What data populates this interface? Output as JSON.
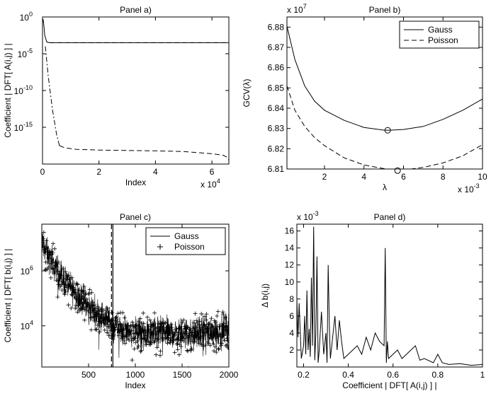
{
  "chart_data": [
    {
      "id": "a",
      "type": "line",
      "title": "Panel a)",
      "xlabel": "Index",
      "ylabel": "Coefficient | DFT[ A(i,j) ] |",
      "x_multiplier": "x 10",
      "x_multiplier_exp": "4",
      "xlim": [
        0,
        6.6
      ],
      "ylim_log10": [
        -20,
        0
      ],
      "xticks": [
        0,
        2,
        4,
        6
      ],
      "xticklabels": [
        "0",
        "2",
        "4",
        "6"
      ],
      "yticks_log10": [
        0,
        -5,
        -10,
        -15
      ],
      "ytick_base": "10",
      "ytick_exps": [
        "0",
        "-5",
        "-10",
        "-15"
      ],
      "series": [
        {
          "style": "solid",
          "x": [
            0,
            0.02,
            0.05,
            0.08,
            0.15,
            0.25,
            6.6
          ],
          "log10_y": [
            -0.8,
            -0.3,
            -1.2,
            -2.5,
            -3.4,
            -3.5,
            -3.5
          ]
        },
        {
          "style": "dashed",
          "x": [
            0.25,
            1,
            2,
            3,
            4,
            5,
            6.5
          ],
          "log10_y": [
            -3.5,
            -3.5,
            -3.5,
            -3.5,
            -3.5,
            -3.5,
            -3.5
          ]
        },
        {
          "style": "dashdot",
          "x": [
            0.1,
            0.2,
            0.35,
            0.5,
            0.6
          ],
          "log10_y": [
            -4,
            -8,
            -12.5,
            -16,
            -17.5
          ]
        },
        {
          "style": "dashed",
          "x": [
            0.6,
            0.8,
            1.2,
            2,
            3,
            4,
            5,
            6,
            6.4,
            6.55,
            6.6
          ],
          "log10_y": [
            -17.5,
            -17.8,
            -18.0,
            -18.1,
            -18.15,
            -18.2,
            -18.3,
            -18.6,
            -18.8,
            -19.1,
            -19.5
          ]
        }
      ]
    },
    {
      "id": "b",
      "type": "line",
      "title": "Panel b)",
      "xlabel": "λ",
      "ylabel": "GCV(λ)",
      "x_multiplier": "x 10",
      "x_multiplier_exp": "-3",
      "y_multiplier": "x 10",
      "y_multiplier_exp": "7",
      "xlim": [
        0.1,
        10
      ],
      "ylim": [
        6.81,
        6.885
      ],
      "xticks": [
        2,
        4,
        6,
        8,
        10
      ],
      "xticklabels": [
        "2",
        "4",
        "6",
        "8",
        "10"
      ],
      "yticks": [
        6.81,
        6.82,
        6.83,
        6.84,
        6.85,
        6.86,
        6.87,
        6.88
      ],
      "yticklabels": [
        "6.81",
        "6.82",
        "6.83",
        "6.84",
        "6.85",
        "6.86",
        "6.87",
        "6.88"
      ],
      "legend": {
        "position": "top-right",
        "entries": [
          "Gauss",
          "Poisson"
        ]
      },
      "series": [
        {
          "name": "Gauss",
          "style": "solid",
          "x": [
            0.1,
            0.5,
            1,
            1.5,
            2,
            3,
            4,
            5,
            5.2,
            6,
            7,
            8,
            9,
            10
          ],
          "y": [
            6.8805,
            6.864,
            6.851,
            6.8435,
            6.839,
            6.834,
            6.8305,
            6.8292,
            6.8291,
            6.8295,
            6.831,
            6.8345,
            6.839,
            6.8445
          ]
        },
        {
          "name": "Poisson",
          "style": "dashed",
          "x": [
            0.1,
            0.5,
            1,
            1.5,
            2,
            3,
            4,
            5,
            5.7,
            6,
            7,
            8,
            9,
            10
          ],
          "y": [
            6.851,
            6.839,
            6.831,
            6.8255,
            6.8215,
            6.8155,
            6.812,
            6.8102,
            6.8092,
            6.8095,
            6.8108,
            6.813,
            6.8165,
            6.822
          ]
        }
      ],
      "markers": [
        {
          "x": 5.2,
          "y": 6.8291
        },
        {
          "x": 5.7,
          "y": 6.8092
        }
      ]
    },
    {
      "id": "c",
      "type": "scatter",
      "title": "Panel c)",
      "xlabel": "Index",
      "ylabel": "Coefficient |  DFT[ b(i,j) ] |",
      "xlim": [
        0,
        2000
      ],
      "ylim_log10": [
        2.5,
        7.7
      ],
      "xticks": [
        500,
        1000,
        1500,
        2000
      ],
      "xticklabels": [
        "500",
        "1000",
        "1500",
        "2000"
      ],
      "yticks_log10": [
        6,
        4
      ],
      "ytick_base": "10",
      "ytick_exps": [
        "6",
        "4"
      ],
      "legend": {
        "position": "top-right",
        "entries": [
          "Gauss",
          "Poisson"
        ]
      },
      "vlines": [
        {
          "x": 760,
          "style": "solid"
        },
        {
          "x": 745,
          "style": "dashed"
        }
      ],
      "trend": {
        "x": [
          0,
          100,
          200,
          300,
          400,
          500,
          600,
          700,
          800,
          900,
          1000,
          1200,
          1400,
          1600,
          1800,
          2000
        ],
        "log10_y": [
          7.0,
          6.35,
          5.85,
          5.45,
          5.05,
          4.7,
          4.45,
          4.2,
          3.95,
          3.85,
          3.75,
          3.75,
          3.75,
          3.7,
          3.78,
          3.85
        ]
      }
    },
    {
      "id": "d",
      "type": "line",
      "title": "Panel d)",
      "xlabel": "Coefficient | DFT[ A(i,j) ] |",
      "ylabel": "Δ b(i,j)",
      "y_multiplier": "x 10",
      "y_multiplier_exp": "-3",
      "xlim": [
        0.17,
        1
      ],
      "ylim": [
        0,
        16.8
      ],
      "xticks": [
        0.2,
        0.4,
        0.6,
        0.8,
        1
      ],
      "xticklabels": [
        "0.2",
        "0.4",
        "0.6",
        "0.8",
        "1"
      ],
      "yticks": [
        2,
        4,
        6,
        8,
        10,
        12,
        14,
        16
      ],
      "yticklabels": [
        "2",
        "4",
        "6",
        "8",
        "10",
        "12",
        "14",
        "16"
      ],
      "series": [
        {
          "style": "solid",
          "x": [
            0.17,
            0.175,
            0.18,
            0.19,
            0.2,
            0.205,
            0.21,
            0.215,
            0.22,
            0.225,
            0.23,
            0.235,
            0.24,
            0.245,
            0.25,
            0.255,
            0.26,
            0.265,
            0.27,
            0.28,
            0.29,
            0.3,
            0.305,
            0.31,
            0.315,
            0.32,
            0.33,
            0.34,
            0.35,
            0.36,
            0.37,
            0.38,
            0.4,
            0.42,
            0.44,
            0.46,
            0.48,
            0.5,
            0.52,
            0.54,
            0.56,
            0.565,
            0.57,
            0.575,
            0.58,
            0.6,
            0.62,
            0.64,
            0.66,
            0.68,
            0.7,
            0.72,
            0.74,
            0.78,
            0.8,
            0.82,
            0.85,
            0.9,
            0.95,
            1.0
          ],
          "y": [
            8.0,
            3.5,
            7.5,
            1.0,
            2.5,
            6.0,
            1.5,
            9.0,
            2.0,
            4.5,
            1.2,
            10.5,
            2.5,
            16.5,
            0.8,
            4.0,
            13.0,
            0.5,
            2.0,
            6.5,
            1.5,
            4.0,
            0.5,
            12.0,
            5.0,
            1.0,
            3.5,
            6.0,
            2.0,
            5.5,
            3.0,
            1.0,
            1.5,
            2.0,
            2.5,
            1.5,
            3.5,
            2.0,
            4.0,
            3.0,
            2.5,
            14.0,
            0.5,
            3.0,
            1.0,
            1.5,
            2.0,
            1.0,
            1.5,
            2.0,
            2.5,
            0.8,
            1.0,
            0.5,
            1.5,
            0.5,
            0.3,
            0.4,
            0.2,
            0.3
          ]
        }
      ]
    }
  ]
}
